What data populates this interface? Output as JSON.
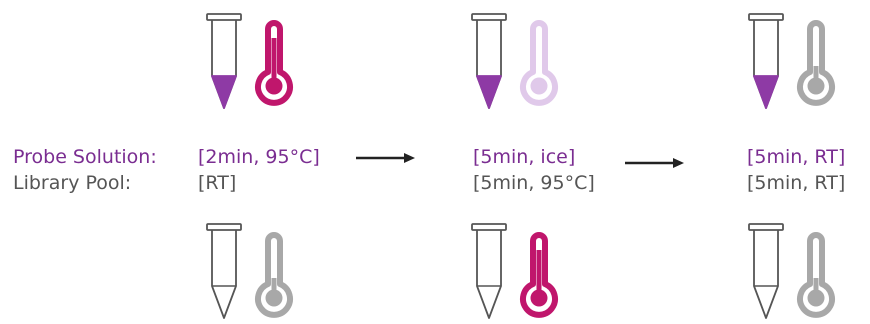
{
  "colors": {
    "probe": "#7a2d91",
    "library": "#555555",
    "liquid": "#8e3aa5",
    "hot": "#c0166c",
    "hot_faded": "#e0c9ea",
    "neutral": "#a8a8a8",
    "tube_outline": "#555555",
    "arrow": "#222222"
  },
  "labels": {
    "probe": "Probe Solution:",
    "library": "Library Pool:"
  },
  "steps": [
    {
      "probe_condition": "[2min, 95°C]",
      "library_condition": "[RT]",
      "probe_icons": {
        "tube": "tube-with-liquid-icon",
        "thermometer": "thermometer-hot-icon"
      },
      "library_icons": {
        "tube": "empty-tube-icon",
        "thermometer": "thermometer-neutral-icon"
      }
    },
    {
      "probe_condition": "[5min, ice]",
      "library_condition": "[5min, 95°C]",
      "probe_icons": {
        "tube": "tube-with-liquid-icon",
        "thermometer": "thermometer-cold-icon"
      },
      "library_icons": {
        "tube": "empty-tube-icon",
        "thermometer": "thermometer-hot-icon"
      }
    },
    {
      "probe_condition": "[5min, RT]",
      "library_condition": "[5min, RT]",
      "probe_icons": {
        "tube": "tube-with-liquid-icon",
        "thermometer": "thermometer-neutral-icon"
      },
      "library_icons": {
        "tube": "empty-tube-icon",
        "thermometer": "thermometer-neutral-icon"
      }
    }
  ]
}
